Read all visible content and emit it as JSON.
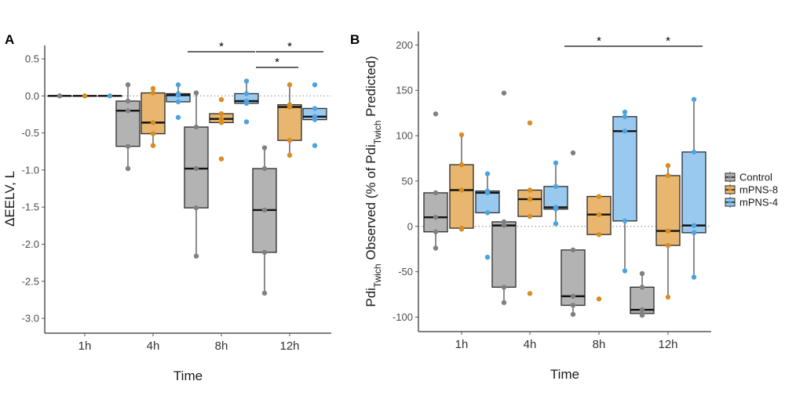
{
  "chart_data": [
    {
      "type": "box",
      "panel_label": "A",
      "title": "",
      "xlabel": "Time",
      "ylabel": "ΔEELV, L",
      "categories": [
        "1h",
        "4h",
        "8h",
        "12h"
      ],
      "ylim": [
        -3.2,
        0.68
      ],
      "yticks": [
        0.5,
        0.0,
        -0.5,
        -1.0,
        -1.5,
        -2.0,
        -2.5,
        -3.0
      ],
      "ytick_labels": [
        "0.5",
        "0.0",
        "-0.5",
        "-1.0",
        "-1.5",
        "-2.0",
        "-2.5",
        "-3.0"
      ],
      "reference_line": 0,
      "grid": false,
      "series": [
        {
          "name": "Control",
          "boxes": [
            {
              "min": 0,
              "q1": 0,
              "median": 0,
              "q3": 0,
              "max": 0,
              "points": [
                0
              ]
            },
            {
              "min": -0.98,
              "q1": -0.68,
              "median": -0.2,
              "q3": -0.07,
              "max": 0.15,
              "points": [
                0.15,
                -0.07,
                -0.2,
                -0.68,
                -0.98
              ]
            },
            {
              "min": -2.16,
              "q1": -1.51,
              "median": -0.98,
              "q3": -0.42,
              "max": 0.04,
              "points": [
                0.04,
                -0.42,
                -0.98,
                -1.51,
                -2.16
              ]
            },
            {
              "min": -2.66,
              "q1": -2.11,
              "median": -1.54,
              "q3": -0.98,
              "max": -0.7,
              "points": [
                -0.7,
                -0.98,
                -1.54,
                -2.11,
                -2.66
              ]
            }
          ]
        },
        {
          "name": "mPNS-8",
          "boxes": [
            {
              "min": 0,
              "q1": 0,
              "median": 0,
              "q3": 0,
              "max": 0,
              "points": [
                0
              ]
            },
            {
              "min": -0.67,
              "q1": -0.51,
              "median": -0.36,
              "q3": 0.04,
              "max": 0.1,
              "points": [
                0.1,
                0.04,
                -0.36,
                -0.51,
                -0.67
              ]
            },
            {
              "min": -0.36,
              "q1": -0.36,
              "median": -0.31,
              "q3": -0.24,
              "max": -0.24,
              "points": [
                -0.05,
                -0.24,
                -0.31,
                -0.36,
                -0.85
              ]
            },
            {
              "min": -0.8,
              "q1": -0.6,
              "median": -0.15,
              "q3": -0.12,
              "max": 0.15,
              "points": [
                0.15,
                -0.12,
                -0.15,
                -0.6,
                -0.8
              ]
            }
          ]
        },
        {
          "name": "mPNS-4",
          "boxes": [
            {
              "min": 0,
              "q1": 0,
              "median": 0,
              "q3": 0,
              "max": 0,
              "points": [
                0
              ]
            },
            {
              "min": -0.08,
              "q1": -0.08,
              "median": 0.01,
              "q3": 0.03,
              "max": 0.15,
              "points": [
                0.15,
                0.03,
                0.01,
                -0.08,
                -0.29
              ]
            },
            {
              "min": -0.1,
              "q1": -0.1,
              "median": -0.07,
              "q3": 0.03,
              "max": 0.2,
              "points": [
                0.2,
                0.03,
                -0.07,
                -0.1,
                -0.35
              ]
            },
            {
              "min": -0.32,
              "q1": -0.32,
              "median": -0.28,
              "q3": -0.17,
              "max": -0.17,
              "points": [
                0.15,
                -0.17,
                -0.28,
                -0.32,
                -0.67
              ]
            }
          ]
        }
      ],
      "significance": [
        {
          "category": "8h",
          "label": "*",
          "from": "Control",
          "to": "mPNS-4",
          "level": 1
        },
        {
          "category": "12h",
          "label": "*",
          "from": "Control",
          "to": "mPNS-4",
          "level": 1
        },
        {
          "category": "12h",
          "label": "*",
          "from": "Control",
          "to": "mPNS-8",
          "level": 2
        }
      ]
    },
    {
      "type": "box",
      "panel_label": "B",
      "title": "",
      "xlabel": "Time",
      "ylabel_parts": [
        {
          "text": "Pdi",
          "sub": "Twich"
        },
        {
          "text": " Observed (% of Pdi",
          "sub": "Twich"
        },
        {
          "text": " Predicted)",
          "sub": ""
        }
      ],
      "categories": [
        "1h",
        "4h",
        "8h",
        "12h"
      ],
      "ylim": [
        -116,
        215
      ],
      "yticks": [
        200,
        150,
        100,
        50,
        0,
        -50,
        -100
      ],
      "ytick_labels": [
        "200",
        "150",
        "100",
        "50",
        "0",
        "-50",
        "-100"
      ],
      "reference_line": 0,
      "grid": false,
      "series": [
        {
          "name": "Control",
          "boxes": [
            {
              "min": -24,
              "q1": -6,
              "median": 10,
              "q3": 37,
              "max": 37,
              "points": [
                124,
                37,
                10,
                -6,
                -24
              ]
            },
            {
              "min": -84,
              "q1": -67,
              "median": 1,
              "q3": 5,
              "max": 5,
              "points": [
                147,
                5,
                1,
                -67,
                -84
              ]
            },
            {
              "min": -97,
              "q1": -87,
              "median": -77,
              "q3": -26,
              "max": -26,
              "points": [
                81,
                -26,
                -77,
                -87,
                -97
              ]
            },
            {
              "min": -98,
              "q1": -96,
              "median": -92,
              "q3": -67,
              "max": -52,
              "points": [
                -52,
                -67,
                -92,
                -96,
                -98
              ]
            }
          ]
        },
        {
          "name": "mPNS-8",
          "boxes": [
            {
              "min": -3,
              "q1": -2,
              "median": 40,
              "q3": 68,
              "max": 101,
              "points": [
                101,
                68,
                40,
                -2,
                -3
              ]
            },
            {
              "min": 11,
              "q1": 11,
              "median": 30,
              "q3": 40,
              "max": 40,
              "points": [
                114,
                40,
                30,
                11,
                -74
              ]
            },
            {
              "min": -9,
              "q1": -9,
              "median": 13,
              "q3": 33,
              "max": 33,
              "points": [
                33,
                13,
                -9,
                -80
              ]
            },
            {
              "min": -78,
              "q1": -21,
              "median": -5,
              "q3": 56,
              "max": 67,
              "points": [
                67,
                56,
                -5,
                -21,
                -78
              ]
            }
          ]
        },
        {
          "name": "mPNS-4",
          "boxes": [
            {
              "min": 15,
              "q1": 15,
              "median": 37,
              "q3": 39,
              "max": 58,
              "points": [
                58,
                39,
                37,
                15,
                -34
              ]
            },
            {
              "min": 3,
              "q1": 19,
              "median": 21,
              "q3": 44,
              "max": 70,
              "points": [
                70,
                44,
                21,
                19,
                3
              ]
            },
            {
              "min": -49,
              "q1": 6,
              "median": 105,
              "q3": 121,
              "max": 126,
              "points": [
                126,
                121,
                105,
                6,
                -49
              ]
            },
            {
              "min": -56,
              "q1": -7,
              "median": 1,
              "q3": 82,
              "max": 140,
              "points": [
                140,
                82,
                1,
                -7,
                -56
              ]
            }
          ]
        }
      ],
      "significance": [
        {
          "category": "8h",
          "label": "*",
          "from": "Control",
          "to": "mPNS-4",
          "level": 1
        },
        {
          "category": "12h",
          "label": "*",
          "from": "Control",
          "to": "mPNS-4",
          "level": 1
        }
      ]
    }
  ],
  "legend": {
    "position": "right",
    "items": [
      {
        "label": "Control",
        "fill": "#b3b3b3",
        "point": "#808080"
      },
      {
        "label": "mPNS-8",
        "fill": "#e8b66f",
        "point": "#d98c1f"
      },
      {
        "label": "mPNS-4",
        "fill": "#99c9ee",
        "point": "#4ea3df"
      }
    ]
  },
  "colors": {
    "box_stroke": "#2b2b2b",
    "whisker": "#666666",
    "axis": "#555555",
    "reference": "#999999"
  }
}
